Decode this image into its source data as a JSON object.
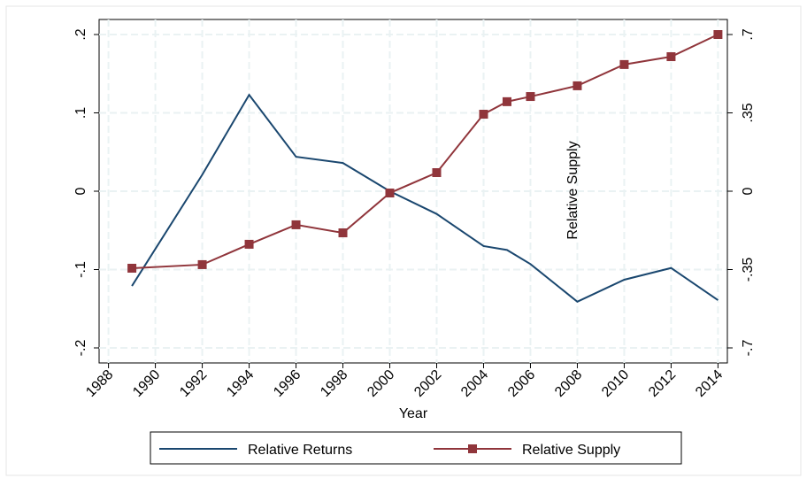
{
  "chart_data": {
    "type": "line",
    "x": [
      1989,
      1992,
      1994,
      1996,
      1998,
      2000,
      2002,
      2004,
      2005,
      2006,
      2008,
      2010,
      2012,
      2014
    ],
    "series": [
      {
        "name": "Relative Returns",
        "color": "#1a476f",
        "values": [
          -0.121,
          0.021,
          0.123,
          0.044,
          0.036,
          0.0,
          -0.029,
          -0.07,
          -0.075,
          -0.093,
          -0.141,
          -0.113,
          -0.098,
          -0.139
        ]
      },
      {
        "name": "Relative Supply",
        "color": "#90353b",
        "axis": "y2",
        "marker": "square",
        "values": [
          -0.344,
          -0.328,
          -0.237,
          -0.15,
          -0.186,
          -0.008,
          0.083,
          0.344,
          0.4,
          0.423,
          0.471,
          0.566,
          0.601,
          0.7
        ]
      }
    ],
    "xlabel": "Year",
    "annotation": "Relative Supply",
    "xlim": [
      1987.6,
      2014.4
    ],
    "xticks": [
      1988,
      1990,
      1992,
      1994,
      1996,
      1998,
      2000,
      2002,
      2004,
      2006,
      2008,
      2010,
      2012,
      2014
    ],
    "ylim": [
      -0.2,
      0.2
    ],
    "yticks": [
      {
        "value": -0.2,
        "label": "-.2"
      },
      {
        "value": -0.1,
        "label": "-.1"
      },
      0,
      {
        "value": 0.1,
        "label": ".1"
      },
      {
        "value": 0.2,
        "label": ".2"
      }
    ],
    "y2lim": [
      -0.7,
      0.7
    ],
    "y2ticks": [
      {
        "value": -0.7,
        "label": "-.7"
      },
      {
        "value": -0.35,
        "label": "-.35"
      },
      0,
      {
        "value": 0.35,
        "label": ".35"
      },
      {
        "value": 0.7,
        "label": ".7"
      }
    ],
    "grid": true,
    "legend": "bottom"
  }
}
